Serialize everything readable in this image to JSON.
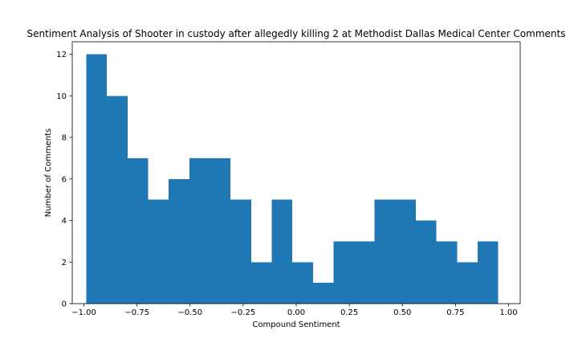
{
  "chart_data": {
    "type": "bar",
    "title": "Sentiment Analysis of Shooter in custody after allegedly killing 2 at Methodist Dallas Medical Center Comments",
    "xlabel": "Compound Sentiment",
    "ylabel": "Number of Comments",
    "xlim": [
      -1.055,
      1.055
    ],
    "ylim": [
      0,
      12.6
    ],
    "xticks": [
      -1.0,
      -0.75,
      -0.5,
      -0.25,
      0.0,
      0.25,
      0.5,
      0.75,
      1.0
    ],
    "xtick_labels": [
      "−1.00",
      "−0.75",
      "−0.50",
      "−0.25",
      "0.00",
      "0.25",
      "0.50",
      "0.75",
      "1.00"
    ],
    "yticks": [
      0,
      2,
      4,
      6,
      8,
      10,
      12
    ],
    "ytick_labels": [
      "0",
      "2",
      "4",
      "6",
      "8",
      "10",
      "12"
    ],
    "bin_edges": [
      -0.9885,
      -0.8915,
      -0.7945,
      -0.6975,
      -0.6005,
      -0.5035,
      -0.4065,
      -0.3095,
      -0.2125,
      -0.1155,
      -0.0185,
      0.0785,
      0.1755,
      0.2725,
      0.3695,
      0.4665,
      0.5635,
      0.6605,
      0.7575,
      0.8545,
      0.9515
    ],
    "values": [
      12,
      10,
      7,
      5,
      6,
      7,
      7,
      5,
      2,
      5,
      2,
      1,
      3,
      3,
      5,
      5,
      4,
      3,
      2,
      3
    ],
    "bar_color": "#1f77b4",
    "grid": false
  }
}
